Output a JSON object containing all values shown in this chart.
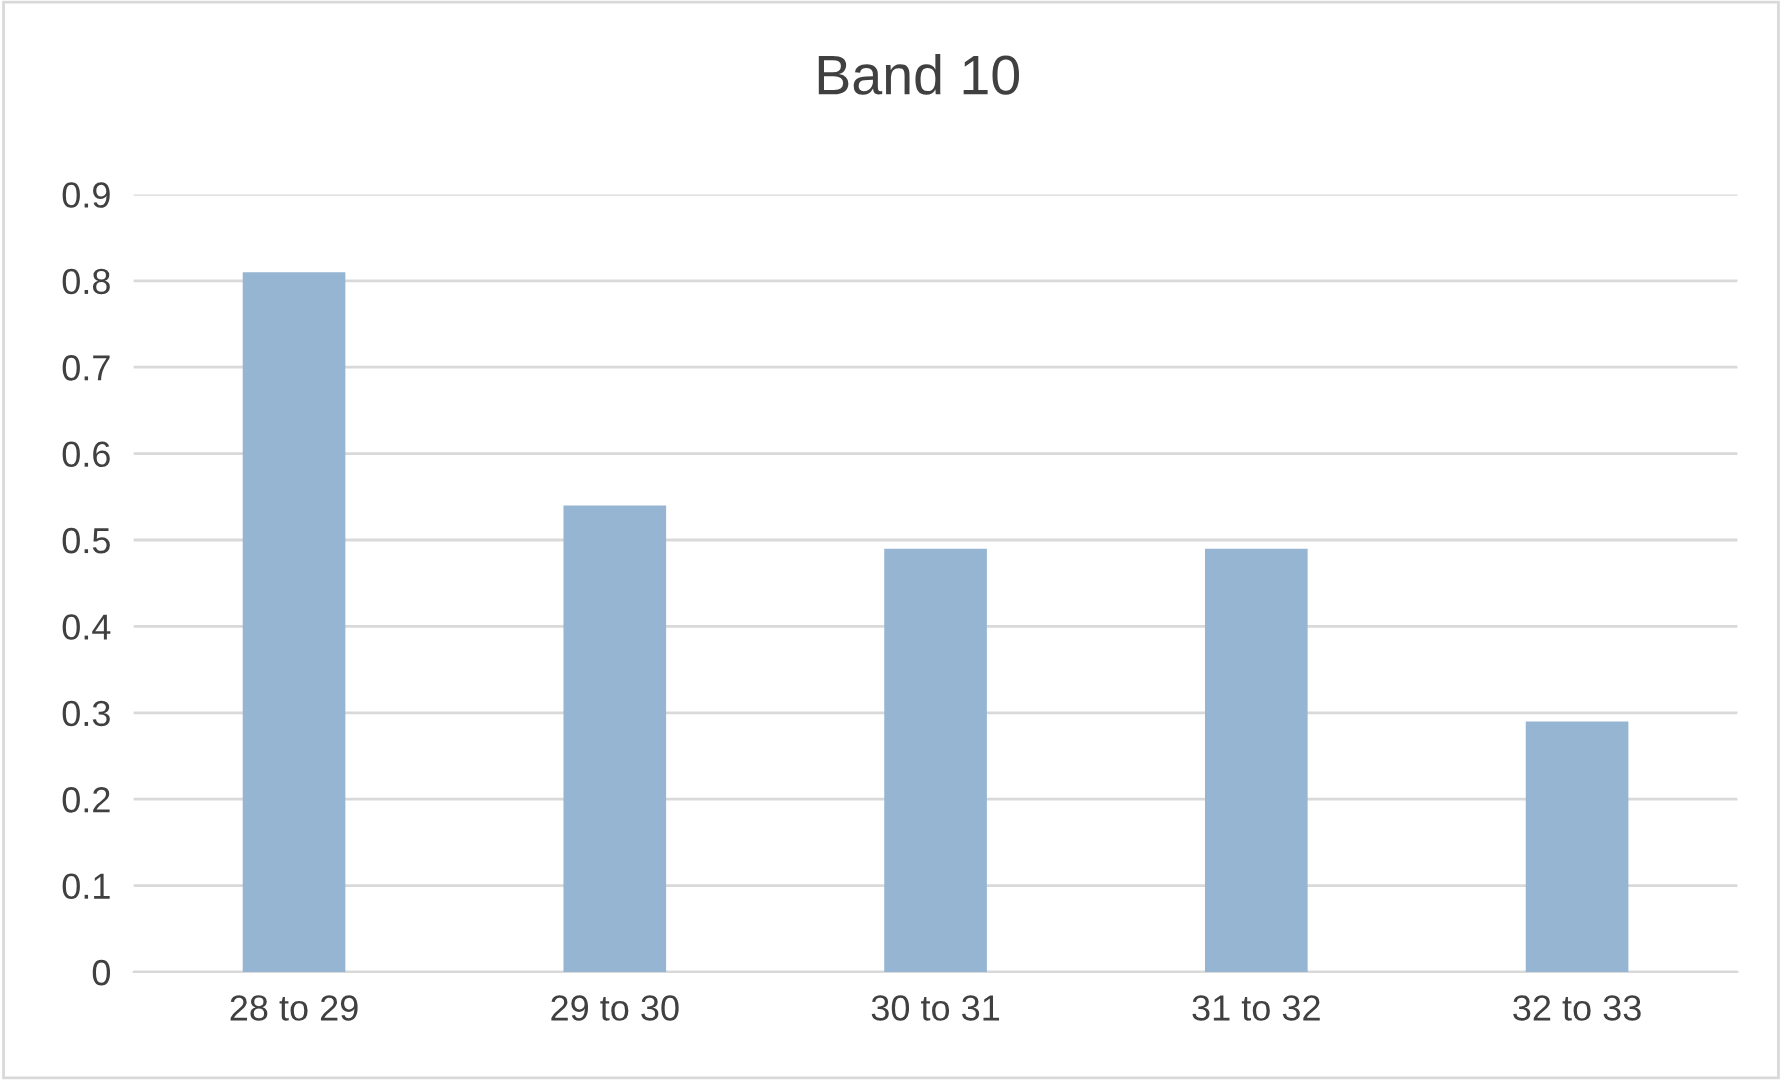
{
  "chart_data": {
    "type": "bar",
    "title": "Band 10",
    "categories": [
      "28 to 29",
      "29 to 30",
      "30 to 31",
      "31 to 32",
      "32 to 33"
    ],
    "values": [
      0.81,
      0.54,
      0.49,
      0.49,
      0.29
    ],
    "color": "#95b5d3",
    "ylim": [
      0,
      0.9
    ],
    "yticks": [
      0,
      0.1,
      0.2,
      0.3,
      0.4,
      0.5,
      0.6,
      0.7,
      0.8,
      0.9
    ],
    "grid": "y"
  }
}
